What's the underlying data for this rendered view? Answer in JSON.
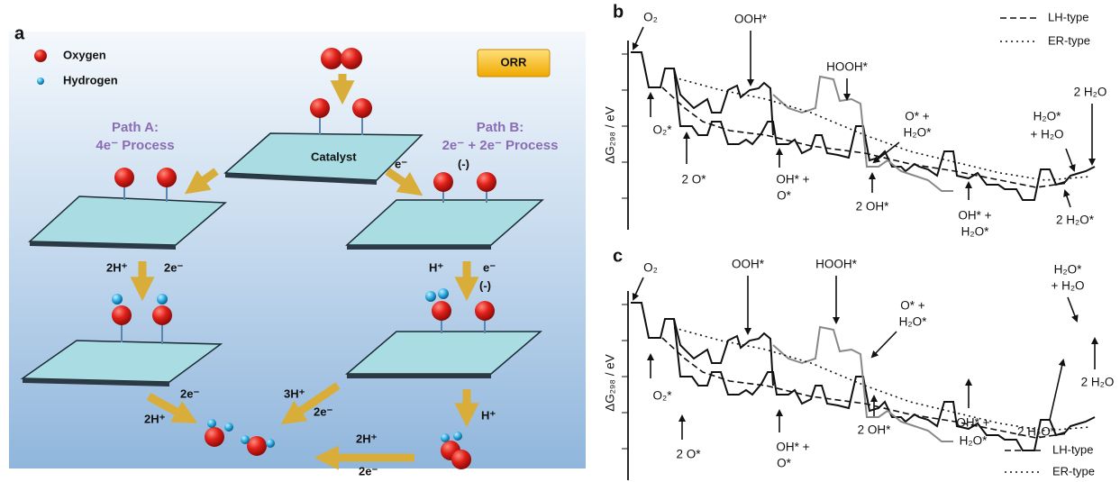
{
  "panel_a": {
    "label": "a",
    "legend": {
      "oxygen": "Oxygen",
      "hydrogen": "Hydrogen"
    },
    "badge": "ORR",
    "path_a": [
      "Path A:",
      "4e⁻ Process"
    ],
    "path_b": [
      "Path B:",
      "2e⁻ + 2e⁻ Process"
    ],
    "catalyst": "Catalyst",
    "steps": [
      "e⁻",
      "(-)",
      "2H⁺",
      "2e⁻",
      "H⁺",
      "e⁻",
      "(-)",
      "2e⁻",
      "2H⁺",
      "3H⁺",
      "2e⁻",
      "H⁺",
      "2H⁺",
      "2e⁻"
    ]
  },
  "panel_b": {
    "label": "b",
    "y_axis": "ΔG₂₉₈ / eV",
    "annotations": [
      "O₂",
      "OOH*",
      "HOOH*",
      "O* +",
      "H₂O*",
      "2 H₂O",
      "H₂O*",
      "+ H₂O",
      "O₂*",
      "2 O*",
      "OH* +",
      "O*",
      "2 OH*",
      "OH* +",
      "H₂O*",
      "2 H₂O*"
    ],
    "legend": [
      "LH-type",
      "ER-type"
    ]
  },
  "panel_c": {
    "label": "c",
    "y_axis": "ΔG₂₉₈ / eV",
    "annotations": [
      "O₂",
      "OOH*",
      "HOOH*",
      "O* +",
      "H₂O*",
      "H₂O*",
      "+ H₂O",
      "2 H₂O",
      "O₂*",
      "2 O*",
      "OH* +",
      "O*",
      "2 OH*",
      "OH* +",
      "H₂O*",
      "2 H₂O*"
    ],
    "legend": [
      "LH-type",
      "ER-type"
    ]
  }
}
